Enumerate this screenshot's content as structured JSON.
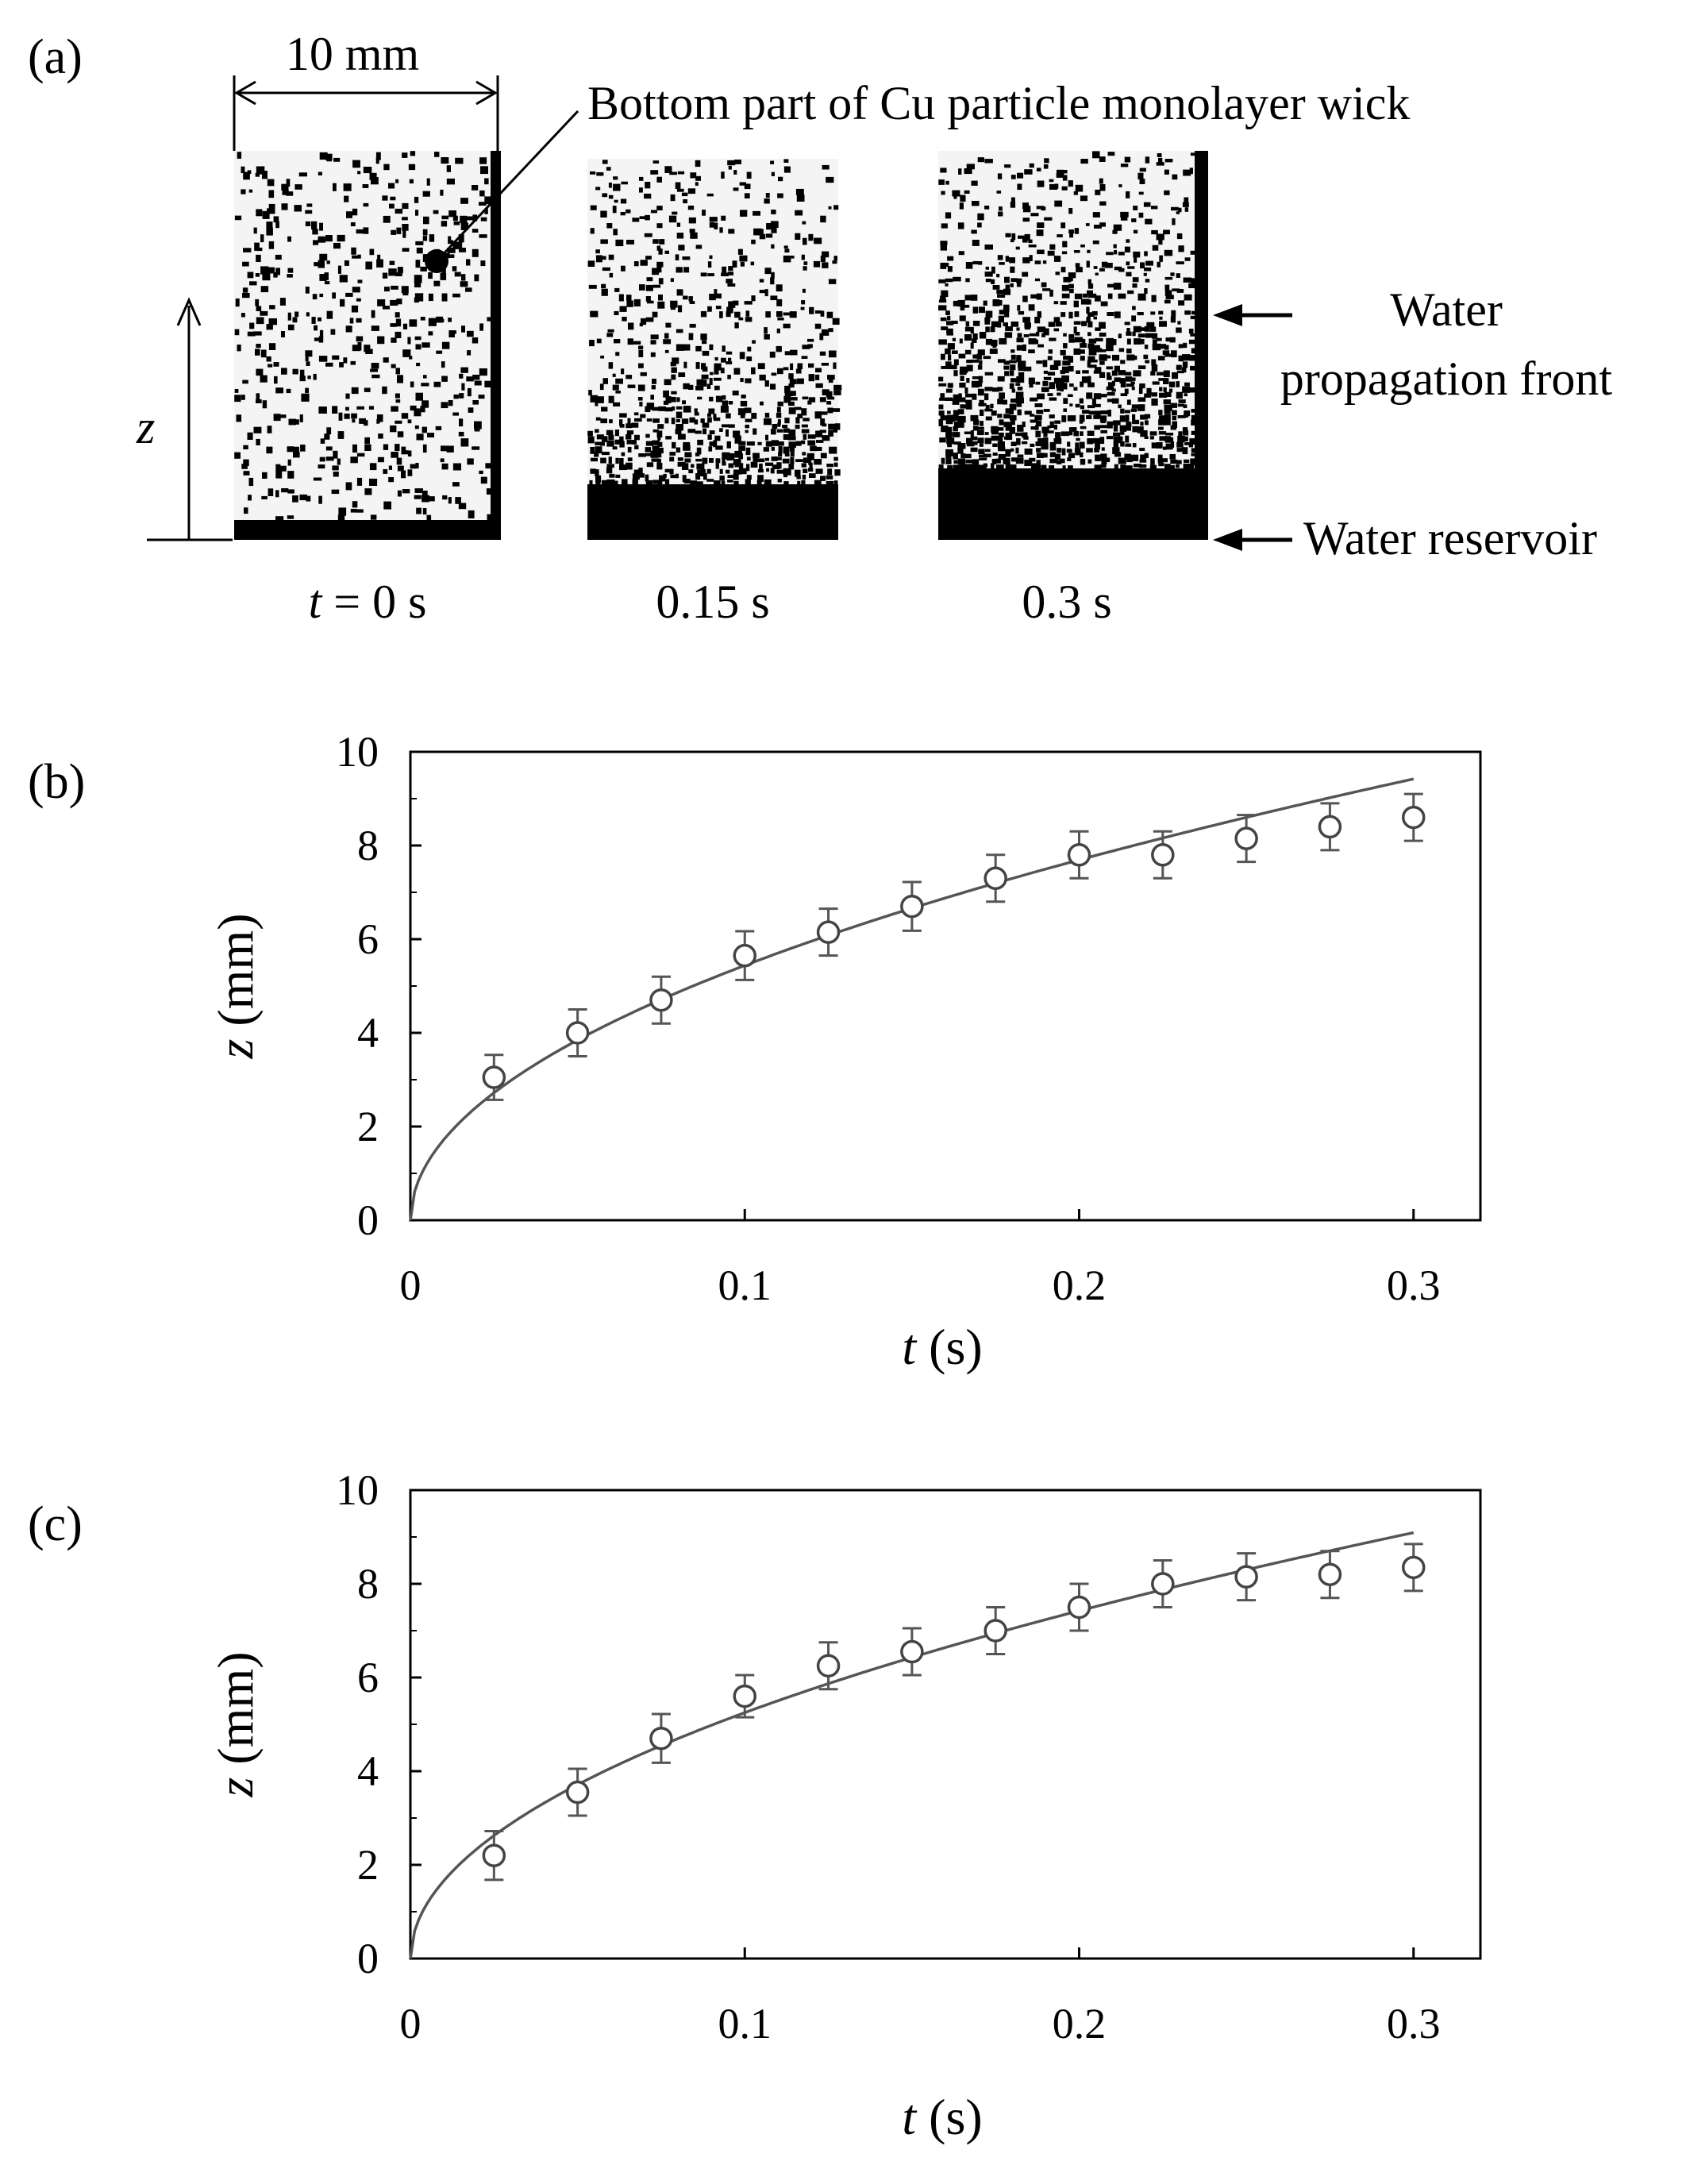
{
  "panel_a": {
    "label": "(a)",
    "scale_label": "10 mm",
    "callout": "Bottom part of Cu particle monolayer wick",
    "axis_z": "z",
    "front_label_line1": "Water",
    "front_label_line2": "propagation front",
    "reservoir_label": "Water reservoir",
    "time_labels": {
      "t_var": "t",
      "eq": " = 0 s",
      "mid": "0.15 s",
      "right": "0.3 s"
    }
  },
  "chart_data": [
    {
      "panel": "(b)",
      "type": "scatter",
      "xlabel_var": "t",
      "xlabel_unit": " (s)",
      "ylabel_var": "z",
      "ylabel_unit": " (mm)",
      "xlim": [
        0,
        0.32
      ],
      "ylim": [
        0,
        10
      ],
      "xticks": [
        "0",
        "0.1",
        "0.2",
        "0.3"
      ],
      "yticks": [
        "0",
        "2",
        "4",
        "6",
        "8",
        "10"
      ],
      "grid": false,
      "series": [
        {
          "marker": "open-circle",
          "x": [
            0.025,
            0.05,
            0.075,
            0.1,
            0.125,
            0.15,
            0.175,
            0.2,
            0.225,
            0.25,
            0.275,
            0.3
          ],
          "y": [
            3.05,
            4.0,
            4.7,
            5.65,
            6.15,
            6.7,
            7.3,
            7.8,
            7.8,
            8.15,
            8.4,
            8.6
          ],
          "err": [
            0.48,
            0.5,
            0.5,
            0.52,
            0.5,
            0.52,
            0.5,
            0.5,
            0.5,
            0.5,
            0.5,
            0.5
          ]
        }
      ],
      "fit": {
        "type": "sqrt",
        "coef": 17.2,
        "x_end": 0.3
      }
    },
    {
      "panel": "(c)",
      "type": "scatter",
      "xlabel_var": "t",
      "xlabel_unit": " (s)",
      "ylabel_var": "z",
      "ylabel_unit": " (mm)",
      "xlim": [
        0,
        0.32
      ],
      "ylim": [
        0,
        10
      ],
      "xticks": [
        "0",
        "0.1",
        "0.2",
        "0.3"
      ],
      "yticks": [
        "0",
        "2",
        "4",
        "6",
        "8",
        "10"
      ],
      "grid": false,
      "series": [
        {
          "marker": "open-circle",
          "x": [
            0.025,
            0.05,
            0.075,
            0.1,
            0.125,
            0.15,
            0.175,
            0.2,
            0.225,
            0.25,
            0.275,
            0.3
          ],
          "y": [
            2.2,
            3.55,
            4.7,
            5.6,
            6.25,
            6.55,
            7.0,
            7.5,
            8.0,
            8.15,
            8.2,
            8.35
          ],
          "err": [
            0.52,
            0.5,
            0.52,
            0.45,
            0.5,
            0.5,
            0.5,
            0.5,
            0.5,
            0.5,
            0.5,
            0.5
          ]
        }
      ],
      "fit": {
        "type": "sqrt",
        "coef": 16.6,
        "x_end": 0.3
      }
    }
  ]
}
